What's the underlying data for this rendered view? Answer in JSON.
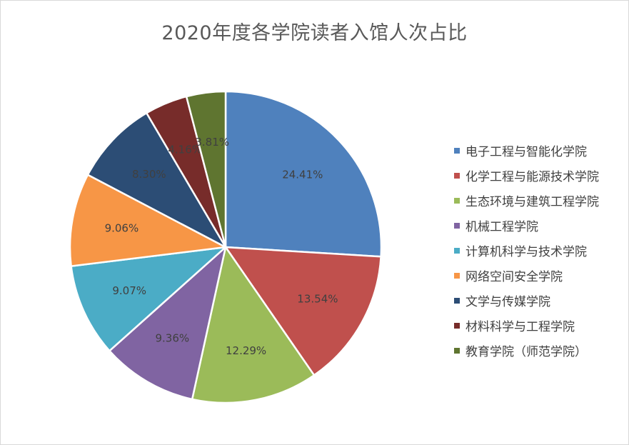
{
  "chart_data": {
    "type": "pie",
    "title": "2020年度各学院读者入馆人次占比",
    "start_angle_deg": 0,
    "direction": "clockwise",
    "slices": [
      {
        "label": "电子工程与智能化学院",
        "value": 24.41,
        "value_label": "24.41%",
        "color": "#4f81bd"
      },
      {
        "label": "化学工程与能源技术学院",
        "value": 13.54,
        "value_label": "13.54%",
        "color": "#c0504d"
      },
      {
        "label": "生态环境与建筑工程学院",
        "value": 12.29,
        "value_label": "12.29%",
        "color": "#9bbb59"
      },
      {
        "label": "机械工程学院",
        "value": 9.36,
        "value_label": "9.36%",
        "color": "#8064a2"
      },
      {
        "label": "计算机科学与技术学院",
        "value": 9.07,
        "value_label": "9.07%",
        "color": "#4bacc6"
      },
      {
        "label": "网络空间安全学院",
        "value": 9.06,
        "value_label": "9.06%",
        "color": "#f79646"
      },
      {
        "label": "文学与传媒学院",
        "value": 8.3,
        "value_label": "8.30%",
        "color": "#2c4d75"
      },
      {
        "label": "材料科学与工程学院",
        "value": 4.16,
        "value_label": "4.16%",
        "color": "#772c2a"
      },
      {
        "label": "教育学院（师范学院）",
        "value": 3.81,
        "value_label": "3.81%",
        "color": "#5f7530"
      }
    ],
    "legend_position": "right"
  }
}
